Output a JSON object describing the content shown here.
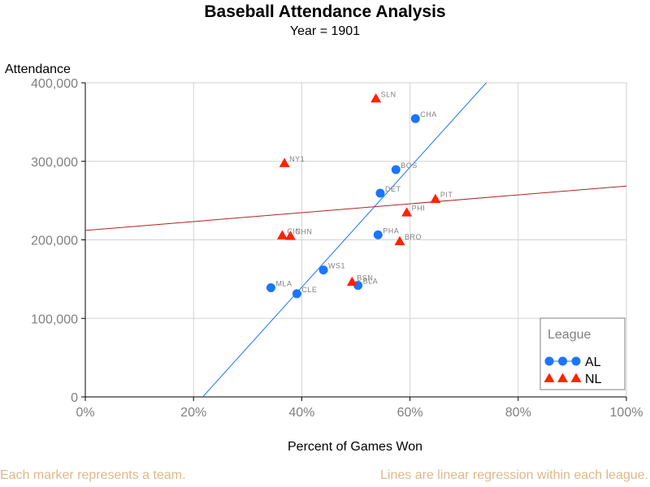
{
  "chart_data": {
    "type": "scatter",
    "title": "Baseball Attendance Analysis",
    "subtitle": "Year = 1901",
    "xlabel": "Percent of Games Won",
    "ylabel": "Attendance",
    "xlim": [
      0,
      1
    ],
    "ylim": [
      0,
      400000
    ],
    "x_ticks": [
      0,
      0.2,
      0.4,
      0.6,
      0.8,
      1.0
    ],
    "x_tick_labels": [
      "0%",
      "20%",
      "40%",
      "60%",
      "80%",
      "100%"
    ],
    "y_ticks": [
      0,
      100000,
      200000,
      300000,
      400000
    ],
    "y_tick_labels": [
      "0",
      "100,000",
      "200,000",
      "300,000",
      "400,000"
    ],
    "grid": true,
    "legend": {
      "title": "League",
      "position": "bottom-right"
    },
    "series": [
      {
        "name": "AL",
        "color": "#1a75ff",
        "marker": "circle",
        "points": [
          {
            "label": "CHA",
            "x": 0.61,
            "y": 354350
          },
          {
            "label": "BOS",
            "x": 0.574,
            "y": 289448
          },
          {
            "label": "DET",
            "x": 0.545,
            "y": 259430
          },
          {
            "label": "PHA",
            "x": 0.541,
            "y": 206329
          },
          {
            "label": "WS1",
            "x": 0.44,
            "y": 161661
          },
          {
            "label": "BLA",
            "x": 0.504,
            "y": 141952
          },
          {
            "label": "CLE",
            "x": 0.391,
            "y": 131380
          },
          {
            "label": "MLA",
            "x": 0.343,
            "y": 139034
          }
        ],
        "regression": {
          "x1": 0.217,
          "y1": 0,
          "x2": 0.741,
          "y2": 400000
        }
      },
      {
        "name": "NL",
        "color": "#ff2200",
        "regression_color": "#b22222",
        "marker": "triangle",
        "points": [
          {
            "label": "SLN",
            "x": 0.537,
            "y": 379988
          },
          {
            "label": "NY1",
            "x": 0.368,
            "y": 297650
          },
          {
            "label": "PIT",
            "x": 0.647,
            "y": 251955
          },
          {
            "label": "PHI",
            "x": 0.594,
            "y": 234937
          },
          {
            "label": "BRO",
            "x": 0.581,
            "y": 198200
          },
          {
            "label": "CIN",
            "x": 0.364,
            "y": 205728
          },
          {
            "label": "CHN",
            "x": 0.379,
            "y": 205071
          },
          {
            "label": "BSN",
            "x": 0.493,
            "y": 146502
          }
        ],
        "regression": {
          "x1": 0.0,
          "y1": 212000,
          "x2": 1.0,
          "y2": 268500
        }
      }
    ]
  },
  "footnotes": {
    "left": "Each marker represents a team.",
    "right": "Lines are linear regression within each league."
  }
}
